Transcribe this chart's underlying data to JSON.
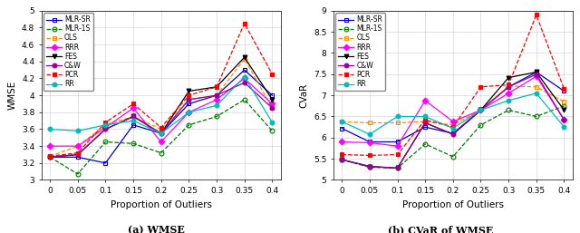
{
  "x": [
    0,
    0.05,
    0.1,
    0.15,
    0.2,
    0.25,
    0.3,
    0.35,
    0.4
  ],
  "wmse": {
    "MLR-SR": [
      3.27,
      3.27,
      3.2,
      3.65,
      3.55,
      3.9,
      4.0,
      4.3,
      4.0
    ],
    "MLR-1S": [
      3.27,
      3.07,
      3.45,
      3.43,
      3.32,
      3.65,
      3.75,
      3.95,
      3.58
    ],
    "OLS": [
      3.28,
      3.4,
      3.65,
      3.75,
      3.6,
      3.95,
      4.0,
      4.43,
      3.85
    ],
    "RRR": [
      3.4,
      3.4,
      3.62,
      3.85,
      3.45,
      3.8,
      3.95,
      4.2,
      3.9
    ],
    "FES": [
      3.27,
      3.3,
      3.6,
      3.75,
      3.55,
      4.05,
      4.1,
      4.45,
      3.95
    ],
    "C&W": [
      3.27,
      3.3,
      3.6,
      3.75,
      3.55,
      3.95,
      4.0,
      4.15,
      3.85
    ],
    "PCR": [
      3.28,
      3.32,
      3.68,
      3.9,
      3.62,
      4.0,
      4.1,
      4.85,
      4.25
    ],
    "RR": [
      3.6,
      3.58,
      3.65,
      3.7,
      3.55,
      3.8,
      3.88,
      4.22,
      3.68
    ]
  },
  "cvar": {
    "MLR-SR": [
      6.22,
      5.9,
      5.9,
      6.25,
      6.1,
      6.65,
      7.2,
      7.55,
      7.1
    ],
    "MLR-1S": [
      5.48,
      5.3,
      5.28,
      5.85,
      5.55,
      6.3,
      6.65,
      6.5,
      6.75
    ],
    "OLS": [
      6.38,
      6.35,
      6.35,
      6.38,
      6.3,
      6.65,
      7.22,
      7.2,
      6.85
    ],
    "RRR": [
      5.9,
      5.88,
      5.8,
      6.88,
      6.38,
      6.65,
      7.05,
      7.45,
      6.42
    ],
    "FES": [
      5.48,
      5.32,
      5.28,
      6.35,
      6.08,
      6.65,
      7.42,
      7.55,
      6.65
    ],
    "C&W": [
      5.48,
      5.32,
      5.28,
      6.35,
      6.08,
      6.65,
      7.2,
      7.5,
      6.42
    ],
    "PCR": [
      5.6,
      5.58,
      5.6,
      6.42,
      6.25,
      7.2,
      7.25,
      8.9,
      7.15
    ],
    "RR": [
      6.38,
      6.08,
      6.5,
      6.5,
      6.22,
      6.65,
      6.88,
      7.05,
      6.25
    ]
  },
  "colors": {
    "MLR-SR": "#0000cc",
    "MLR-1S": "#007700",
    "OLS": "#FF8C00",
    "RRR": "#FF00FF",
    "FES": "#000000",
    "C&W": "#990099",
    "PCR": "#FF0000",
    "RR": "#00BBBB"
  },
  "linestyles": {
    "MLR-SR": "-",
    "MLR-1S": "--",
    "OLS": "--",
    "RRR": "-",
    "FES": "-",
    "C&W": "-",
    "PCR": "--",
    "RR": "-"
  },
  "markers": {
    "MLR-SR": "s",
    "MLR-1S": "o",
    "OLS": "s",
    "RRR": "D",
    "FES": "v",
    "C&W": "o",
    "PCR": "s",
    "RR": "o"
  },
  "markerfilled": {
    "MLR-SR": false,
    "MLR-1S": false,
    "OLS": false,
    "RRR": true,
    "FES": true,
    "C&W": true,
    "PCR": true,
    "RR": true
  },
  "wmse_ylim": [
    3.0,
    5.0
  ],
  "cvar_ylim": [
    5.0,
    9.0
  ],
  "wmse_yticks": [
    3.0,
    3.2,
    3.4,
    3.6,
    3.8,
    4.0,
    4.2,
    4.4,
    4.6,
    4.8,
    5.0
  ],
  "cvar_yticks": [
    5.0,
    5.5,
    6.0,
    6.5,
    7.0,
    7.5,
    8.0,
    8.5,
    9.0
  ],
  "xticks": [
    0,
    0.05,
    0.1,
    0.15,
    0.2,
    0.25,
    0.3,
    0.35,
    0.4
  ],
  "xtick_labels": [
    "0",
    "0.05",
    "0.1",
    "0.15",
    "0.2",
    "0.25",
    "0.3",
    "0.35",
    "0.4"
  ],
  "xlabel": "Proportion of Outliers",
  "wmse_ylabel": "WMSE",
  "cvar_ylabel": "CVaR",
  "caption_left": "(a) WMSE",
  "caption_right": "(b) CVaR of WMSE",
  "legend_order": [
    "MLR-SR",
    "MLR-1S",
    "OLS",
    "RRR",
    "FES",
    "C&W",
    "PCR",
    "RR"
  ]
}
